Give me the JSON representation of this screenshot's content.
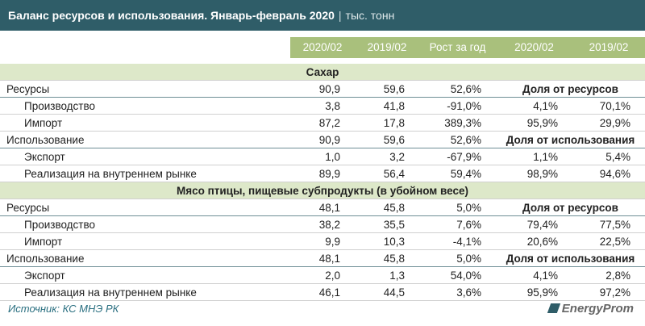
{
  "header": {
    "title": "Баланс ресурсов и использования. Январь-февраль 2020",
    "unit": "тыс. тонн"
  },
  "table": {
    "columns": [
      "2020/02",
      "2019/02",
      "Рост за год",
      "2020/02",
      "2019/02"
    ],
    "sections": [
      {
        "title": "Сахар",
        "rows": [
          {
            "label": "Ресурсы",
            "values": [
              "90,9",
              "59,6",
              "52,6%"
            ],
            "share_label": "Доля от ресурсов"
          },
          {
            "label": "Производство",
            "values": [
              "3,8",
              "41,8",
              "-91,0%",
              "4,1%",
              "70,1%"
            ]
          },
          {
            "label": "Импорт",
            "values": [
              "87,2",
              "17,8",
              "389,3%",
              "95,9%",
              "29,9%"
            ]
          },
          {
            "label": "Использование",
            "values": [
              "90,9",
              "59,6",
              "52,6%"
            ],
            "share_label": "Доля от использования"
          },
          {
            "label": "Экспорт",
            "values": [
              "1,0",
              "3,2",
              "-67,9%",
              "1,1%",
              "5,4%"
            ]
          },
          {
            "label": "Реализация на внутреннем рынке",
            "values": [
              "89,9",
              "56,4",
              "59,4%",
              "98,9%",
              "94,6%"
            ]
          }
        ]
      },
      {
        "title": "Мясо птицы, пищевые субпродукты (в убойном весе)",
        "rows": [
          {
            "label": "Ресурсы",
            "values": [
              "48,1",
              "45,8",
              "5,0%"
            ],
            "share_label": "Доля от ресурсов"
          },
          {
            "label": "Производство",
            "values": [
              "38,2",
              "35,5",
              "7,6%",
              "79,4%",
              "77,5%"
            ]
          },
          {
            "label": "Импорт",
            "values": [
              "9,9",
              "10,3",
              "-4,1%",
              "20,6%",
              "22,5%"
            ]
          },
          {
            "label": "Использование",
            "values": [
              "48,1",
              "45,8",
              "5,0%"
            ],
            "share_label": "Доля от использования"
          },
          {
            "label": "Экспорт",
            "values": [
              "2,0",
              "1,3",
              "54,0%",
              "4,1%",
              "2,8%"
            ]
          },
          {
            "label": "Реализация на внутреннем рынке",
            "values": [
              "46,1",
              "44,5",
              "3,6%",
              "95,9%",
              "97,2%"
            ]
          }
        ]
      }
    ]
  },
  "footer": {
    "source": "Источник: КС МНЭ РК",
    "logo": "EnergyProm"
  }
}
